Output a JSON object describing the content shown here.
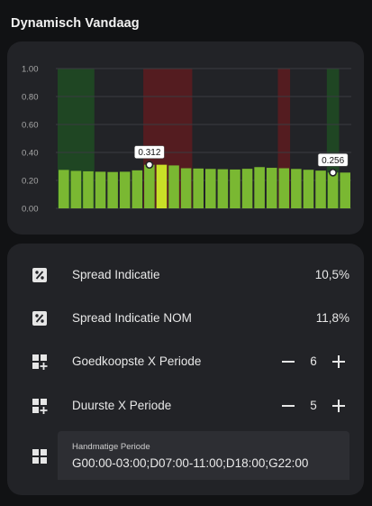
{
  "card_title": "Dynamisch Vandaag",
  "chart_data": {
    "type": "bar",
    "title": "",
    "xlabel": "",
    "ylabel": "",
    "ylim": [
      0,
      1
    ],
    "y_ticks": [
      "1.00",
      "0.80",
      "0.60",
      "0.40",
      "0.20",
      "0.00"
    ],
    "hours": [
      0,
      1,
      2,
      3,
      4,
      5,
      6,
      7,
      8,
      9,
      10,
      11,
      12,
      13,
      14,
      15,
      16,
      17,
      18,
      19,
      20,
      21,
      22,
      23
    ],
    "values": [
      0.275,
      0.268,
      0.265,
      0.262,
      0.26,
      0.262,
      0.272,
      0.312,
      0.312,
      0.307,
      0.287,
      0.285,
      0.282,
      0.28,
      0.278,
      0.283,
      0.295,
      0.29,
      0.287,
      0.282,
      0.276,
      0.27,
      0.256,
      0.256
    ],
    "bar_colors": {
      "normal": "#7ab832",
      "highlight": "#c9df27"
    },
    "highlighted_hours": [
      8
    ],
    "background_bands": [
      {
        "from_hour": 0,
        "to_hour": 3,
        "color": "#1f4a24",
        "meaning": "goedkoopste"
      },
      {
        "from_hour": 7,
        "to_hour": 11,
        "color": "#5a1c20",
        "meaning": "duurste"
      },
      {
        "from_hour": 18,
        "to_hour": 19,
        "color": "#5a1c20",
        "meaning": "duurste"
      },
      {
        "from_hour": 22,
        "to_hour": 23,
        "color": "#1f4a24",
        "meaning": "goedkoopste"
      }
    ],
    "annotations": [
      {
        "hour": 7,
        "value": 0.312,
        "label": "0.312"
      },
      {
        "hour": 22,
        "value": 0.256,
        "label": "0.256"
      }
    ],
    "grid": true
  },
  "entities": {
    "spread": {
      "icon": "percent-box-icon",
      "label": "Spread Indicatie",
      "value": "10,5%"
    },
    "spread_nom": {
      "icon": "percent-box-icon",
      "label": "Spread Indicatie NOM",
      "value": "11,8%"
    },
    "cheapest": {
      "icon": "view-grid-plus-icon",
      "label": "Goedkoopste X Periode",
      "value": "6"
    },
    "most_expensive": {
      "icon": "view-grid-plus-icon",
      "label": "Duurste X Periode",
      "value": "5"
    },
    "manual_period": {
      "icon": "view-grid-icon",
      "label": "Handmatige Periode",
      "value": "G00:00-03:00;D07:00-11:00;D18:00;G22:00"
    }
  },
  "colors": {
    "background": "#111214",
    "card": "#222327",
    "input_bg": "#2d2e33"
  }
}
